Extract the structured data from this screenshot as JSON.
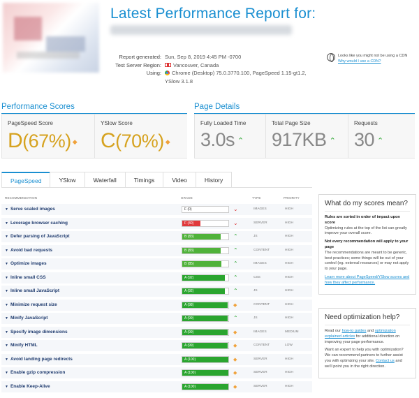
{
  "header": {
    "title": "Latest Performance Report for:",
    "meta": [
      {
        "label": "Report generated:",
        "value": "Sun, Sep 8, 2019 4:45 PM -0700",
        "icon": ""
      },
      {
        "label": "Test Server Region:",
        "value": "Vancouver, Canada",
        "icon": "canada-flag-icon"
      },
      {
        "label": "Using:",
        "value": "Chrome (Desktop) 75.0.3770.100, PageSpeed 1.15-gt1.2,",
        "value2": "YSlow 3.1.8",
        "icon": "chrome-icon"
      }
    ],
    "cdn_line1": "Looks like you might not be using a CDN",
    "cdn_link": "Why would I use a CDN?"
  },
  "performance": {
    "heading": "Performance Scores",
    "pagespeed": {
      "label": "PageSpeed Score",
      "grade": "D",
      "pct": "(67%)"
    },
    "yslow": {
      "label": "YSlow Score",
      "grade": "C",
      "pct": "(70%)"
    }
  },
  "details": {
    "heading": "Page Details",
    "load": {
      "label": "Fully Loaded Time",
      "value": "3.0s"
    },
    "size": {
      "label": "Total Page Size",
      "value": "917KB"
    },
    "requests": {
      "label": "Requests",
      "value": "30"
    }
  },
  "tabs": [
    "PageSpeed",
    "YSlow",
    "Waterfall",
    "Timings",
    "Video",
    "History"
  ],
  "table": {
    "headers": {
      "rec": "RECOMMENDATION",
      "grade": "GRADE",
      "type": "TYPE",
      "prio": "PRIORITY"
    },
    "rows": [
      {
        "name": "Serve scaled images",
        "grade": "F (0)",
        "score": 0,
        "trend": "down",
        "type": "IMAGES",
        "prio": "HIGH"
      },
      {
        "name": "Leverage browser caching",
        "grade": "F (40)",
        "score": 40,
        "trend": "down",
        "type": "SERVER",
        "prio": "HIGH"
      },
      {
        "name": "Defer parsing of JavaScript",
        "grade": "B (83)",
        "score": 83,
        "trend": "up",
        "type": "JS",
        "prio": "HIGH"
      },
      {
        "name": "Avoid bad requests",
        "grade": "B (83)",
        "score": 83,
        "trend": "up",
        "type": "CONTENT",
        "prio": "HIGH"
      },
      {
        "name": "Optimize images",
        "grade": "B (85)",
        "score": 85,
        "trend": "up",
        "type": "IMAGES",
        "prio": "HIGH"
      },
      {
        "name": "Inline small CSS",
        "grade": "A (92)",
        "score": 92,
        "trend": "up",
        "type": "CSS",
        "prio": "HIGH"
      },
      {
        "name": "Inline small JavaScript",
        "grade": "A (92)",
        "score": 92,
        "trend": "up",
        "type": "JS",
        "prio": "HIGH"
      },
      {
        "name": "Minimize request size",
        "grade": "A (98)",
        "score": 98,
        "trend": "same",
        "type": "CONTENT",
        "prio": "HIGH"
      },
      {
        "name": "Minify JavaScript",
        "grade": "A (99)",
        "score": 99,
        "trend": "up",
        "type": "JS",
        "prio": "HIGH"
      },
      {
        "name": "Specify image dimensions",
        "grade": "A (99)",
        "score": 99,
        "trend": "same",
        "type": "IMAGES",
        "prio": "MEDIUM"
      },
      {
        "name": "Minify HTML",
        "grade": "A (99)",
        "score": 99,
        "trend": "same",
        "type": "CONTENT",
        "prio": "LOW"
      },
      {
        "name": "Avoid landing page redirects",
        "grade": "A (100)",
        "score": 100,
        "trend": "same",
        "type": "SERVER",
        "prio": "HIGH"
      },
      {
        "name": "Enable gzip compression",
        "grade": "A (100)",
        "score": 100,
        "trend": "same",
        "type": "SERVER",
        "prio": "HIGH"
      },
      {
        "name": "Enable Keep-Alive",
        "grade": "A (100)",
        "score": 100,
        "trend": "same",
        "type": "SERVER",
        "prio": "HIGH"
      }
    ]
  },
  "scores_box": {
    "title": "What do my scores mean?",
    "b1": "Rules are sorted in order of impact upon score",
    "p1": "Optimizing rules at the top of the list can greatly improve your overall score.",
    "b2": "Not every recommendation will apply to your page",
    "p2": "The recommendations are meant to be generic, best practices; some things will be out of your control (eg. external resources) or may not apply to your page.",
    "link": "Learn more about PageSpeed/YSlow scores and how they affect performance."
  },
  "help_box": {
    "title": "Need optimization help?",
    "p1a": "Read our ",
    "p1link1": "how-to guides",
    "p1b": " and ",
    "p1link2": "optimization explained articles",
    "p1c": " for additional direction on improving your page performance.",
    "p2a": "Want an expert to help you with optimization? We can recommend partners to further assist you with optimizing your site. ",
    "p2link": "Contact us",
    "p2b": " and we'll point you in the right direction."
  },
  "colors": {
    "accent": "#1a8fd1",
    "grade_a": "#2aa52f",
    "grade_b": "#4fb23a",
    "grade_f": "#e0393b",
    "score_gold": "#d6a21f"
  }
}
